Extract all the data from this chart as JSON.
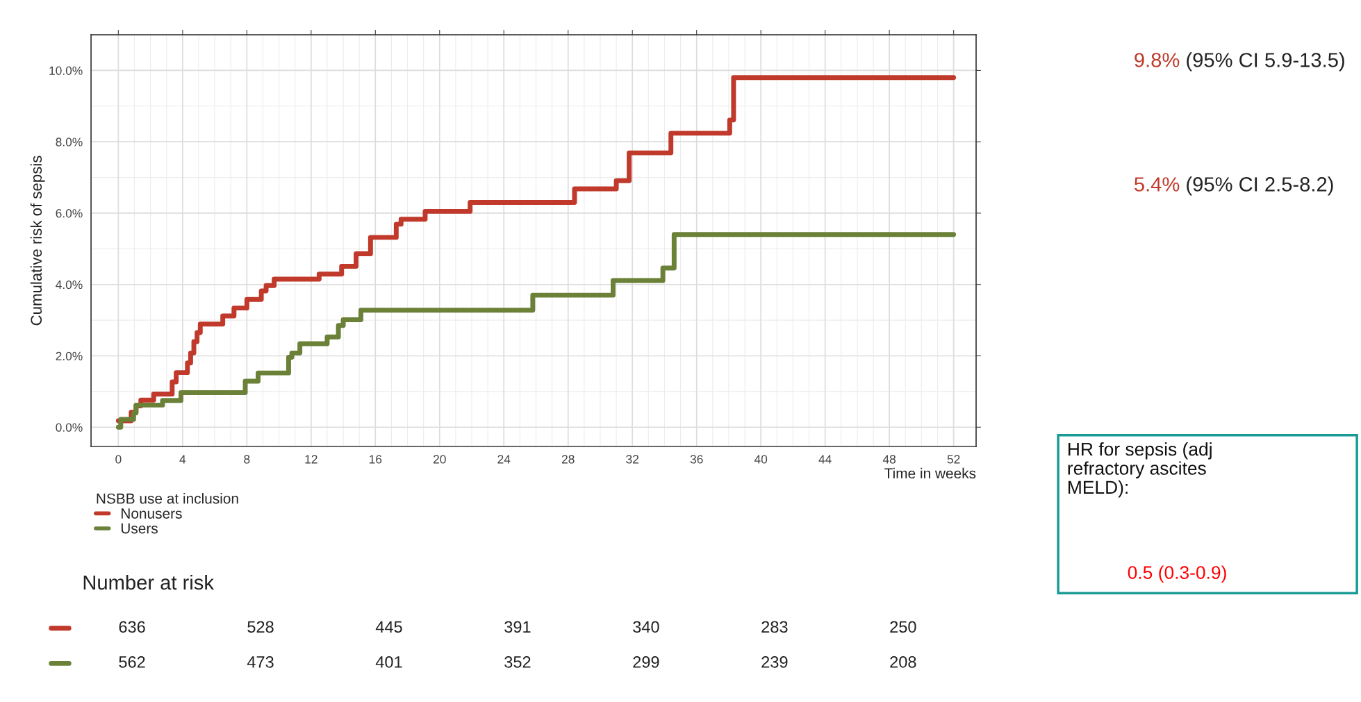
{
  "chart_data": [
    {
      "type": "step",
      "ylabel": "Cumulative risk of sepsis",
      "xlabel": "Time in weeks",
      "legend_title": "NSBB use at inclusion",
      "legend": "bottom",
      "grid": true,
      "xlim": [
        -1.7,
        53.4
      ],
      "xticks": [
        0,
        4,
        8,
        12,
        16,
        20,
        24,
        28,
        32,
        36,
        40,
        44,
        48,
        52
      ],
      "ylim": [
        -0.54,
        11.0
      ],
      "yticks": [
        {
          "value": 0,
          "label": "0.0%"
        },
        {
          "value": 2,
          "label": "2.0%"
        },
        {
          "value": 4,
          "label": "4.0%"
        },
        {
          "value": 6,
          "label": "6.0%"
        },
        {
          "value": 8,
          "label": "8.0%"
        },
        {
          "value": 10,
          "label": "10.0%"
        }
      ],
      "series": [
        {
          "name": "Nonusers",
          "color": "#c0392b",
          "x": [
            0,
            0.8,
            1.1,
            1.4,
            2.2,
            3.35,
            3.6,
            4.3,
            4.5,
            4.7,
            4.9,
            5.1,
            6.5,
            7.2,
            8.0,
            8.9,
            9.2,
            9.7,
            12.5,
            13.9,
            14.8,
            15.7,
            17.3,
            17.6,
            19.1,
            21.9,
            28.4,
            31.0,
            31.8,
            34.4,
            38.06,
            38.3,
            52
          ],
          "values": [
            0.18,
            0.42,
            0.6,
            0.76,
            0.93,
            1.27,
            1.53,
            1.8,
            2.08,
            2.4,
            2.65,
            2.89,
            3.12,
            3.34,
            3.58,
            3.82,
            3.97,
            4.15,
            4.29,
            4.51,
            4.86,
            5.32,
            5.69,
            5.83,
            6.05,
            6.3,
            6.68,
            6.91,
            7.69,
            8.24,
            8.61,
            9.8,
            9.8
          ]
        },
        {
          "name": "Users",
          "color": "#6b8138",
          "x": [
            0,
            0.15,
            0.95,
            1.1,
            2.75,
            3.9,
            7.9,
            8.7,
            10.6,
            10.8,
            11.3,
            13.0,
            13.7,
            14.0,
            15.1,
            25.8,
            30.8,
            33.9,
            34.6,
            52
          ],
          "values": [
            0.0,
            0.22,
            0.4,
            0.62,
            0.75,
            0.97,
            1.29,
            1.52,
            1.96,
            2.08,
            2.34,
            2.53,
            2.85,
            3.01,
            3.28,
            3.7,
            4.11,
            4.46,
            5.4,
            5.4
          ]
        }
      ],
      "annotations": [
        "9.8% (95% CI 5.9-13.5)",
        "5.4% (95% CI 2.5-8.2)",
        "HR for sepsis (adj\nrefractory ascites\nMELD):",
        "0.5 (0.3-0.9)"
      ]
    },
    {
      "type": "other",
      "title": "Number at risk",
      "annotations": [
        "636",
        "528",
        "445",
        "391",
        "340",
        "283",
        "250",
        "562",
        "473",
        "401",
        "352",
        "299",
        "239",
        "208"
      ]
    }
  ]
}
